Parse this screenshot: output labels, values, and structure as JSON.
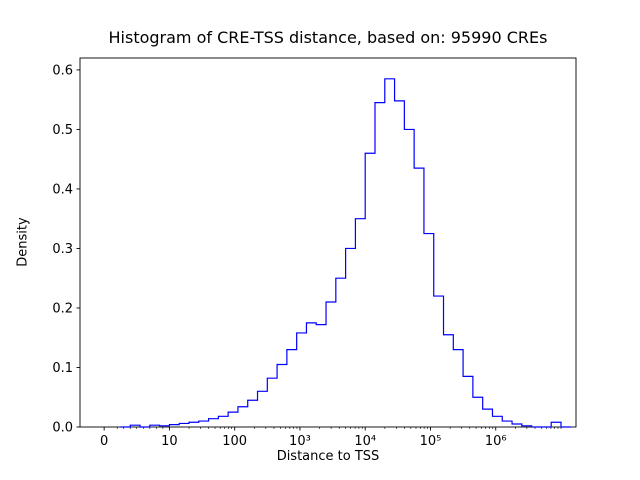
{
  "chart_data": {
    "type": "bar",
    "subtype": "step-histogram",
    "title": "Histogram of CRE-TSS distance, based on: 95990 CREs",
    "xlabel": "Distance to TSS",
    "ylabel": "Density",
    "n_cres": 95990,
    "x_scale": "symlog",
    "line_color": "#0000ff",
    "axis_color": "#000000",
    "background_color": "#ffffff",
    "grid": false,
    "legend": "none",
    "ylim": [
      0,
      0.62
    ],
    "xlim_u": [
      -0.37,
      7.23
    ],
    "y_ticks": [
      {
        "v": 0.0,
        "label": "0.0"
      },
      {
        "v": 0.1,
        "label": "0.1"
      },
      {
        "v": 0.2,
        "label": "0.2"
      },
      {
        "v": 0.3,
        "label": "0.3"
      },
      {
        "v": 0.4,
        "label": "0.4"
      },
      {
        "v": 0.5,
        "label": "0.5"
      },
      {
        "v": 0.6,
        "label": "0.6"
      }
    ],
    "x_ticks": [
      {
        "u": 0,
        "label": "0"
      },
      {
        "u": 1,
        "label": "10"
      },
      {
        "u": 2,
        "label": "100"
      },
      {
        "u": 3,
        "label": "10³"
      },
      {
        "u": 4,
        "label": "10⁴"
      },
      {
        "u": 5,
        "label": "10⁵"
      },
      {
        "u": 6,
        "label": "10⁶"
      }
    ],
    "u_start": 0.25,
    "bin_width_u": 0.15,
    "densities": [
      0.0,
      0.003,
      0.0,
      0.003,
      0.002,
      0.004,
      0.006,
      0.008,
      0.01,
      0.014,
      0.018,
      0.025,
      0.034,
      0.045,
      0.06,
      0.082,
      0.105,
      0.13,
      0.158,
      0.175,
      0.172,
      0.21,
      0.25,
      0.3,
      0.35,
      0.46,
      0.545,
      0.585,
      0.548,
      0.5,
      0.435,
      0.325,
      0.22,
      0.155,
      0.13,
      0.085,
      0.05,
      0.03,
      0.018,
      0.01,
      0.005,
      0.002,
      0.0,
      0.0,
      0.008,
      0.0
    ]
  }
}
